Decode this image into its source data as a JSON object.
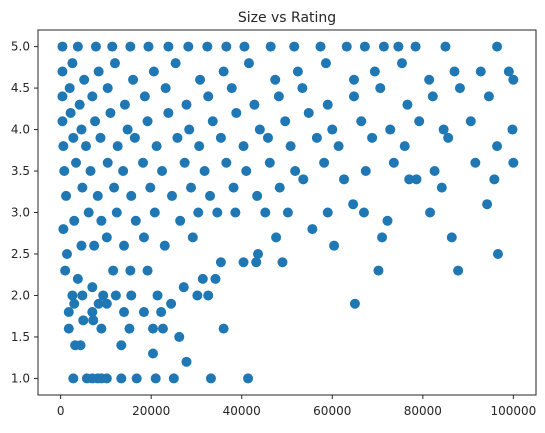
{
  "chart_data": {
    "type": "scatter",
    "title": "Size vs Rating",
    "xlabel": "",
    "ylabel": "",
    "xlim": [
      -5000,
      105000
    ],
    "ylim": [
      0.8,
      5.2
    ],
    "xticks": [
      0,
      20000,
      40000,
      60000,
      80000,
      100000
    ],
    "xtick_labels": [
      "0",
      "20000",
      "40000",
      "60000",
      "80000",
      "100000"
    ],
    "yticks": [
      1.0,
      1.5,
      2.0,
      2.5,
      3.0,
      3.5,
      4.0,
      4.5,
      5.0
    ],
    "ytick_labels": [
      "1.0",
      "1.5",
      "2.0",
      "2.5",
      "3.0",
      "3.5",
      "4.0",
      "4.5",
      "5.0"
    ],
    "grid": false,
    "marker_color": "#1f77b4",
    "series": [
      {
        "points": [
          [
            2800,
            1.0
          ],
          [
            5800,
            1.0
          ],
          [
            7000,
            1.0
          ],
          [
            8200,
            1.0
          ],
          [
            9000,
            1.0
          ],
          [
            10200,
            1.0
          ],
          [
            13400,
            1.0
          ],
          [
            16800,
            1.0
          ],
          [
            21000,
            1.0
          ],
          [
            25000,
            1.0
          ],
          [
            33200,
            1.0
          ],
          [
            41400,
            1.0
          ],
          [
            27800,
            1.2
          ],
          [
            26200,
            1.5
          ],
          [
            20400,
            1.3
          ],
          [
            3200,
            1.4
          ],
          [
            4400,
            1.4
          ],
          [
            13400,
            1.4
          ],
          [
            1800,
            1.6
          ],
          [
            5000,
            1.7
          ],
          [
            7200,
            1.7
          ],
          [
            9000,
            1.6
          ],
          [
            15200,
            1.6
          ],
          [
            20400,
            1.6
          ],
          [
            22600,
            1.6
          ],
          [
            36000,
            1.6
          ],
          [
            1800,
            1.8
          ],
          [
            3000,
            1.9
          ],
          [
            7000,
            1.8
          ],
          [
            8400,
            1.9
          ],
          [
            10200,
            1.9
          ],
          [
            14000,
            1.8
          ],
          [
            18400,
            1.8
          ],
          [
            22200,
            1.8
          ],
          [
            24400,
            1.9
          ],
          [
            2600,
            2.0
          ],
          [
            4800,
            2.0
          ],
          [
            9400,
            2.0
          ],
          [
            12200,
            2.0
          ],
          [
            15600,
            2.0
          ],
          [
            21400,
            2.0
          ],
          [
            30200,
            2.0
          ],
          [
            32600,
            2.0
          ],
          [
            1000,
            2.3
          ],
          [
            3800,
            2.2
          ],
          [
            7000,
            2.1
          ],
          [
            11600,
            2.3
          ],
          [
            15400,
            2.3
          ],
          [
            19200,
            2.3
          ],
          [
            27200,
            2.1
          ],
          [
            31400,
            2.2
          ],
          [
            34200,
            2.2
          ],
          [
            40400,
            2.4
          ],
          [
            43200,
            2.4
          ],
          [
            49000,
            2.4
          ],
          [
            65000,
            1.9
          ],
          [
            70200,
            2.3
          ],
          [
            87800,
            2.3
          ],
          [
            96600,
            2.5
          ],
          [
            1400,
            2.5
          ],
          [
            4600,
            2.6
          ],
          [
            7400,
            2.6
          ],
          [
            10200,
            2.7
          ],
          [
            14000,
            2.6
          ],
          [
            18400,
            2.7
          ],
          [
            23000,
            2.6
          ],
          [
            29200,
            2.7
          ],
          [
            35400,
            2.4
          ],
          [
            43600,
            2.5
          ],
          [
            47600,
            2.7
          ],
          [
            55600,
            2.8
          ],
          [
            60400,
            2.6
          ],
          [
            71000,
            2.7
          ],
          [
            86400,
            2.7
          ],
          [
            600,
            2.8
          ],
          [
            3000,
            2.9
          ],
          [
            6200,
            3.0
          ],
          [
            9000,
            2.9
          ],
          [
            12400,
            3.0
          ],
          [
            16600,
            2.9
          ],
          [
            20800,
            3.0
          ],
          [
            26400,
            2.9
          ],
          [
            30400,
            3.0
          ],
          [
            34600,
            3.0
          ],
          [
            38600,
            3.0
          ],
          [
            45200,
            3.0
          ],
          [
            50200,
            3.0
          ],
          [
            59000,
            3.0
          ],
          [
            64600,
            3.1
          ],
          [
            67000,
            3.0
          ],
          [
            72200,
            2.9
          ],
          [
            81600,
            3.0
          ],
          [
            94200,
            3.1
          ],
          [
            1200,
            3.2
          ],
          [
            4800,
            3.3
          ],
          [
            8200,
            3.2
          ],
          [
            11800,
            3.3
          ],
          [
            15600,
            3.2
          ],
          [
            19800,
            3.3
          ],
          [
            24600,
            3.2
          ],
          [
            28800,
            3.3
          ],
          [
            33000,
            3.2
          ],
          [
            38200,
            3.3
          ],
          [
            43400,
            3.2
          ],
          [
            48400,
            3.3
          ],
          [
            53600,
            3.4
          ],
          [
            62600,
            3.4
          ],
          [
            77000,
            3.4
          ],
          [
            78600,
            3.4
          ],
          [
            84200,
            3.3
          ],
          [
            95800,
            3.4
          ],
          [
            800,
            3.5
          ],
          [
            3400,
            3.6
          ],
          [
            6600,
            3.5
          ],
          [
            10400,
            3.6
          ],
          [
            13800,
            3.5
          ],
          [
            18200,
            3.6
          ],
          [
            22400,
            3.5
          ],
          [
            27400,
            3.6
          ],
          [
            31800,
            3.5
          ],
          [
            36600,
            3.6
          ],
          [
            41000,
            3.5
          ],
          [
            46200,
            3.6
          ],
          [
            51800,
            3.5
          ],
          [
            58200,
            3.6
          ],
          [
            67400,
            3.5
          ],
          [
            73600,
            3.6
          ],
          [
            82600,
            3.5
          ],
          [
            91600,
            3.6
          ],
          [
            100000,
            3.6
          ],
          [
            600,
            3.8
          ],
          [
            2800,
            3.9
          ],
          [
            5600,
            3.8
          ],
          [
            8800,
            3.9
          ],
          [
            12600,
            3.8
          ],
          [
            16400,
            3.9
          ],
          [
            21200,
            3.8
          ],
          [
            25800,
            3.9
          ],
          [
            30600,
            3.8
          ],
          [
            35400,
            3.9
          ],
          [
            40400,
            3.8
          ],
          [
            45800,
            3.9
          ],
          [
            50800,
            3.8
          ],
          [
            56600,
            3.9
          ],
          [
            61400,
            3.8
          ],
          [
            68800,
            3.9
          ],
          [
            76000,
            3.8
          ],
          [
            85600,
            3.9
          ],
          [
            96400,
            3.8
          ],
          [
            400,
            4.1
          ],
          [
            2200,
            4.2
          ],
          [
            4600,
            4.0
          ],
          [
            7600,
            4.1
          ],
          [
            11000,
            4.2
          ],
          [
            14800,
            4.0
          ],
          [
            19200,
            4.1
          ],
          [
            23800,
            4.2
          ],
          [
            28400,
            4.0
          ],
          [
            33600,
            4.1
          ],
          [
            38800,
            4.2
          ],
          [
            44000,
            4.0
          ],
          [
            49600,
            4.1
          ],
          [
            54800,
            4.2
          ],
          [
            60000,
            4.0
          ],
          [
            66400,
            4.1
          ],
          [
            72800,
            4.0
          ],
          [
            79200,
            4.1
          ],
          [
            84600,
            4.0
          ],
          [
            90600,
            4.1
          ],
          [
            99800,
            4.0
          ],
          [
            400,
            4.4
          ],
          [
            2000,
            4.5
          ],
          [
            4200,
            4.3
          ],
          [
            7000,
            4.4
          ],
          [
            10400,
            4.5
          ],
          [
            14200,
            4.3
          ],
          [
            18600,
            4.4
          ],
          [
            23200,
            4.5
          ],
          [
            27800,
            4.3
          ],
          [
            32600,
            4.4
          ],
          [
            37800,
            4.5
          ],
          [
            42800,
            4.3
          ],
          [
            48200,
            4.4
          ],
          [
            53400,
            4.5
          ],
          [
            59000,
            4.3
          ],
          [
            64800,
            4.4
          ],
          [
            70600,
            4.5
          ],
          [
            76600,
            4.3
          ],
          [
            82200,
            4.4
          ],
          [
            88200,
            4.5
          ],
          [
            94600,
            4.4
          ],
          [
            100000,
            4.6
          ],
          [
            400,
            4.7
          ],
          [
            2600,
            4.8
          ],
          [
            5200,
            4.6
          ],
          [
            8400,
            4.7
          ],
          [
            12000,
            4.8
          ],
          [
            16000,
            4.6
          ],
          [
            20600,
            4.7
          ],
          [
            25400,
            4.8
          ],
          [
            30800,
            4.6
          ],
          [
            36000,
            4.7
          ],
          [
            41600,
            4.8
          ],
          [
            47400,
            4.6
          ],
          [
            52400,
            4.7
          ],
          [
            58600,
            4.8
          ],
          [
            64800,
            4.6
          ],
          [
            69400,
            4.7
          ],
          [
            75400,
            4.8
          ],
          [
            81400,
            4.6
          ],
          [
            87000,
            4.7
          ],
          [
            92800,
            4.7
          ],
          [
            99000,
            4.7
          ],
          [
            400,
            5.0
          ],
          [
            3800,
            5.0
          ],
          [
            7800,
            5.0
          ],
          [
            11400,
            5.0
          ],
          [
            15400,
            5.0
          ],
          [
            19400,
            5.0
          ],
          [
            23800,
            5.0
          ],
          [
            28200,
            5.0
          ],
          [
            32400,
            5.0
          ],
          [
            36600,
            5.0
          ],
          [
            40600,
            5.0
          ],
          [
            46400,
            5.0
          ],
          [
            51600,
            5.0
          ],
          [
            57400,
            5.0
          ],
          [
            63200,
            5.0
          ],
          [
            67200,
            5.0
          ],
          [
            71400,
            5.0
          ],
          [
            74600,
            5.0
          ],
          [
            78400,
            5.0
          ],
          [
            85000,
            5.0
          ],
          [
            96400,
            5.0
          ]
        ]
      }
    ]
  }
}
